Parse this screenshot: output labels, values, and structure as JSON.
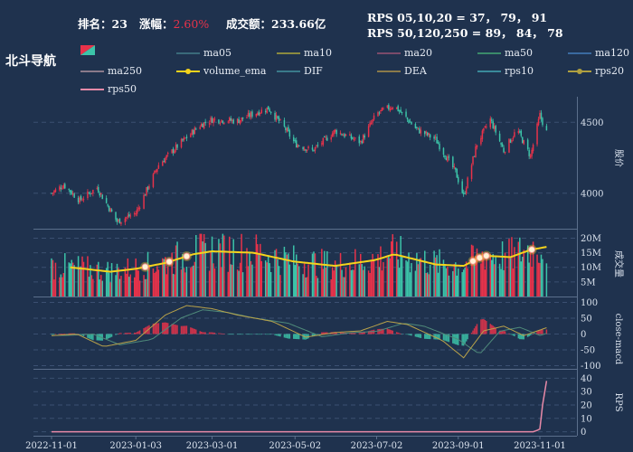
{
  "header": {
    "rank_label": "排名：",
    "rank_value": "23",
    "change_label": "涨幅：",
    "change_value": "2.60%",
    "turnover_label": "成交额：",
    "turnover_value": "233.66亿",
    "rps_line1": "RPS 05,10,20 = 37， 79， 91",
    "rps_line2": "RPS 50,120,250 = 89， 84， 78"
  },
  "title": "北斗导航",
  "colors": {
    "background": "#1f324e",
    "up": "#e8324a",
    "down": "#3cc4a9",
    "volume_ema": "#f5d31c",
    "rps50": "#e88aa8",
    "dif": "#b9a24a",
    "dea": "#4f8a7a"
  },
  "legend": [
    {
      "name": "ma05",
      "color": "#3a6a7a"
    },
    {
      "name": "ma10",
      "color": "#8a8a40"
    },
    {
      "name": "ma20",
      "color": "#7a4a6a"
    },
    {
      "name": "ma50",
      "color": "#3a8a6a"
    },
    {
      "name": "ma120",
      "color": "#3a6aa0"
    },
    {
      "name": "ma250",
      "color": "#8a7a8a"
    },
    {
      "name": "volume_ema",
      "color": "#f5d31c"
    },
    {
      "name": "DIF",
      "color": "#3a7a8a"
    },
    {
      "name": "DEA",
      "color": "#8a7a4a"
    },
    {
      "name": "rps10",
      "color": "#3a8a9a"
    },
    {
      "name": "rps20",
      "color": "#b0a040"
    },
    {
      "name": "rps50",
      "color": "#e88aa8"
    }
  ],
  "chart_data": {
    "type": "candlestick",
    "x_ticks": [
      "2022-11-01",
      "2023-01-03",
      "2023-03-01",
      "2023-05-02",
      "2023-07-02",
      "2023-09-01",
      "2023-11-01"
    ],
    "price_axis": {
      "label": "股价",
      "ticks": [
        4000,
        4500
      ],
      "range": [
        3750,
        4680
      ]
    },
    "volume_axis": {
      "label": "成交量",
      "ticks": [
        "5M",
        "10M",
        "15M",
        "20M"
      ],
      "range": [
        0,
        22000000
      ]
    },
    "macd_axis": {
      "label": "close-macd",
      "ticks": [
        100,
        50,
        0,
        -50,
        -100
      ],
      "range": [
        -110,
        110
      ]
    },
    "rps_axis": {
      "label": "RPS",
      "ticks": [
        40,
        30,
        20,
        10,
        0
      ],
      "range": [
        -3,
        45
      ]
    },
    "price_keypoints": [
      [
        "2022-11-01",
        4000
      ],
      [
        "2022-11-10",
        4060
      ],
      [
        "2022-11-22",
        3950
      ],
      [
        "2022-12-05",
        4040
      ],
      [
        "2022-12-20",
        3800
      ],
      [
        "2023-01-03",
        3860
      ],
      [
        "2023-01-20",
        4200
      ],
      [
        "2023-02-05",
        4350
      ],
      [
        "2023-02-20",
        4480
      ],
      [
        "2023-03-01",
        4520
      ],
      [
        "2023-03-20",
        4510
      ],
      [
        "2023-04-01",
        4560
      ],
      [
        "2023-04-12",
        4600
      ],
      [
        "2023-04-25",
        4450
      ],
      [
        "2023-05-02",
        4350
      ],
      [
        "2023-05-15",
        4300
      ],
      [
        "2023-06-01",
        4440
      ],
      [
        "2023-06-20",
        4360
      ],
      [
        "2023-07-02",
        4560
      ],
      [
        "2023-07-15",
        4620
      ],
      [
        "2023-08-01",
        4450
      ],
      [
        "2023-08-15",
        4380
      ],
      [
        "2023-08-30",
        4150
      ],
      [
        "2023-09-05",
        3980
      ],
      [
        "2023-09-15",
        4350
      ],
      [
        "2023-09-25",
        4520
      ],
      [
        "2023-10-05",
        4300
      ],
      [
        "2023-10-15",
        4450
      ],
      [
        "2023-10-25",
        4260
      ],
      [
        "2023-11-01",
        4550
      ],
      [
        "2023-11-06",
        4430
      ]
    ],
    "macd_dif_keypoints": [
      [
        "2022-11-01",
        -5
      ],
      [
        "2022-11-20",
        0
      ],
      [
        "2022-12-10",
        -40
      ],
      [
        "2023-01-03",
        -20
      ],
      [
        "2023-01-25",
        60
      ],
      [
        "2023-02-10",
        90
      ],
      [
        "2023-03-01",
        80
      ],
      [
        "2023-03-20",
        60
      ],
      [
        "2023-04-15",
        40
      ],
      [
        "2023-05-10",
        -10
      ],
      [
        "2023-06-01",
        5
      ],
      [
        "2023-06-20",
        10
      ],
      [
        "2023-07-10",
        40
      ],
      [
        "2023-07-25",
        30
      ],
      [
        "2023-08-20",
        -20
      ],
      [
        "2023-09-05",
        -75
      ],
      [
        "2023-09-20",
        10
      ],
      [
        "2023-10-05",
        25
      ],
      [
        "2023-10-20",
        -5
      ],
      [
        "2023-11-06",
        20
      ]
    ],
    "rps_keypoints": [
      [
        "2022-11-01",
        0
      ],
      [
        "2023-10-28",
        0
      ],
      [
        "2023-11-01",
        2
      ],
      [
        "2023-11-03",
        20
      ],
      [
        "2023-11-06",
        38
      ]
    ],
    "volume_ema_keypoints": [
      [
        "2022-11-15",
        10000000
      ],
      [
        "2022-12-15",
        8500000
      ],
      [
        "2023-01-03",
        9500000
      ],
      [
        "2023-01-25",
        11500000
      ],
      [
        "2023-02-15",
        14500000
      ],
      [
        "2023-03-01",
        15500000
      ],
      [
        "2023-04-01",
        15000000
      ],
      [
        "2023-05-01",
        12000000
      ],
      [
        "2023-06-01",
        10500000
      ],
      [
        "2023-07-01",
        12500000
      ],
      [
        "2023-07-15",
        14500000
      ],
      [
        "2023-08-15",
        11000000
      ],
      [
        "2023-09-05",
        10500000
      ],
      [
        "2023-09-20",
        14000000
      ],
      [
        "2023-10-10",
        13500000
      ],
      [
        "2023-10-25",
        16000000
      ],
      [
        "2023-11-06",
        17000000
      ]
    ],
    "volume_ema_markers": [
      "2023-01-10",
      "2023-01-28",
      "2023-02-10",
      "2023-09-12",
      "2023-09-17",
      "2023-09-22",
      "2023-10-26"
    ]
  }
}
